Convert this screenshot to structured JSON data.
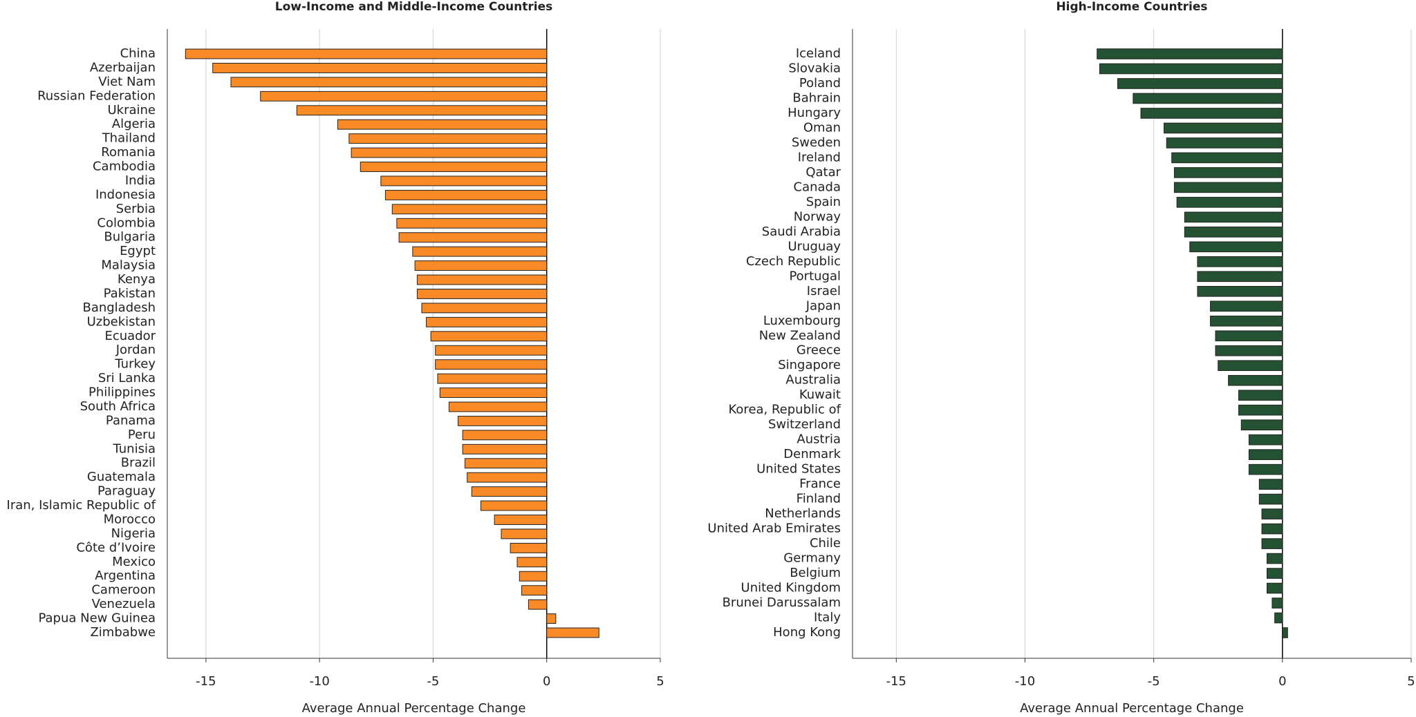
{
  "chart_data": [
    {
      "type": "barh",
      "title": "Low-Income and Middle-Income Countries",
      "x_label": "Average Annual Percentage Change",
      "color": "#f98a26",
      "categories": [
        "China",
        "Azerbaijan",
        "Viet Nam",
        "Russian Federation",
        "Ukraine",
        "Algeria",
        "Thailand",
        "Romania",
        "Cambodia",
        "India",
        "Indonesia",
        "Serbia",
        "Colombia",
        "Bulgaria",
        "Egypt",
        "Malaysia",
        "Kenya",
        "Pakistan",
        "Bangladesh",
        "Uzbekistan",
        "Ecuador",
        "Jordan",
        "Turkey",
        "Sri Lanka",
        "Philippines",
        "South Africa",
        "Panama",
        "Peru",
        "Tunisia",
        "Brazil",
        "Guatemala",
        "Paraguay",
        "Iran, Islamic Republic of",
        "Morocco",
        "Nigeria",
        "Côte d’Ivoire",
        "Mexico",
        "Argentina",
        "Cameroon",
        "Venezuela",
        "Papua New Guinea",
        "Zimbabwe"
      ],
      "values": [
        -15.9,
        -14.7,
        -13.9,
        -12.6,
        -11.0,
        -9.2,
        -8.7,
        -8.6,
        -8.2,
        -7.3,
        -7.1,
        -6.8,
        -6.6,
        -6.5,
        -5.9,
        -5.8,
        -5.7,
        -5.7,
        -5.5,
        -5.3,
        -5.1,
        -4.9,
        -4.9,
        -4.8,
        -4.7,
        -4.3,
        -3.9,
        -3.7,
        -3.7,
        -3.6,
        -3.5,
        -3.3,
        -2.9,
        -2.3,
        -2.0,
        -1.6,
        -1.3,
        -1.2,
        -1.1,
        -0.8,
        0.4,
        2.3
      ],
      "xlim": [
        -16.7,
        5
      ],
      "xticks": [
        -15,
        -10,
        -5,
        0,
        5
      ],
      "grid": true
    },
    {
      "type": "barh",
      "title": "High-Income Countries",
      "x_label": "Average Annual Percentage Change",
      "color": "#245232",
      "categories": [
        "Iceland",
        "Slovakia",
        "Poland",
        "Bahrain",
        "Hungary",
        "Oman",
        "Sweden",
        "Ireland",
        "Qatar",
        "Canada",
        "Spain",
        "Norway",
        "Saudi Arabia",
        "Uruguay",
        "Czech Republic",
        "Portugal",
        "Israel",
        "Japan",
        "Luxembourg",
        "New Zealand",
        "Greece",
        "Singapore",
        "Australia",
        "Kuwait",
        "Korea, Republic of",
        "Switzerland",
        "Austria",
        "Denmark",
        "United States",
        "France",
        "Finland",
        "Netherlands",
        "United Arab Emirates",
        "Chile",
        "Germany",
        "Belgium",
        "United Kingdom",
        "Brunei Darussalam",
        "Italy",
        "Hong Kong"
      ],
      "values": [
        -7.2,
        -7.1,
        -6.4,
        -5.8,
        -5.5,
        -4.6,
        -4.5,
        -4.3,
        -4.2,
        -4.2,
        -4.1,
        -3.8,
        -3.8,
        -3.6,
        -3.3,
        -3.3,
        -3.3,
        -2.8,
        -2.8,
        -2.6,
        -2.6,
        -2.5,
        -2.1,
        -1.7,
        -1.7,
        -1.6,
        -1.3,
        -1.3,
        -1.3,
        -0.9,
        -0.9,
        -0.8,
        -0.8,
        -0.8,
        -0.6,
        -0.6,
        -0.6,
        -0.4,
        -0.3,
        0.2
      ],
      "xlim": [
        -16.7,
        5
      ],
      "xticks": [
        -15,
        -10,
        -5,
        0,
        5
      ],
      "grid": true
    }
  ]
}
